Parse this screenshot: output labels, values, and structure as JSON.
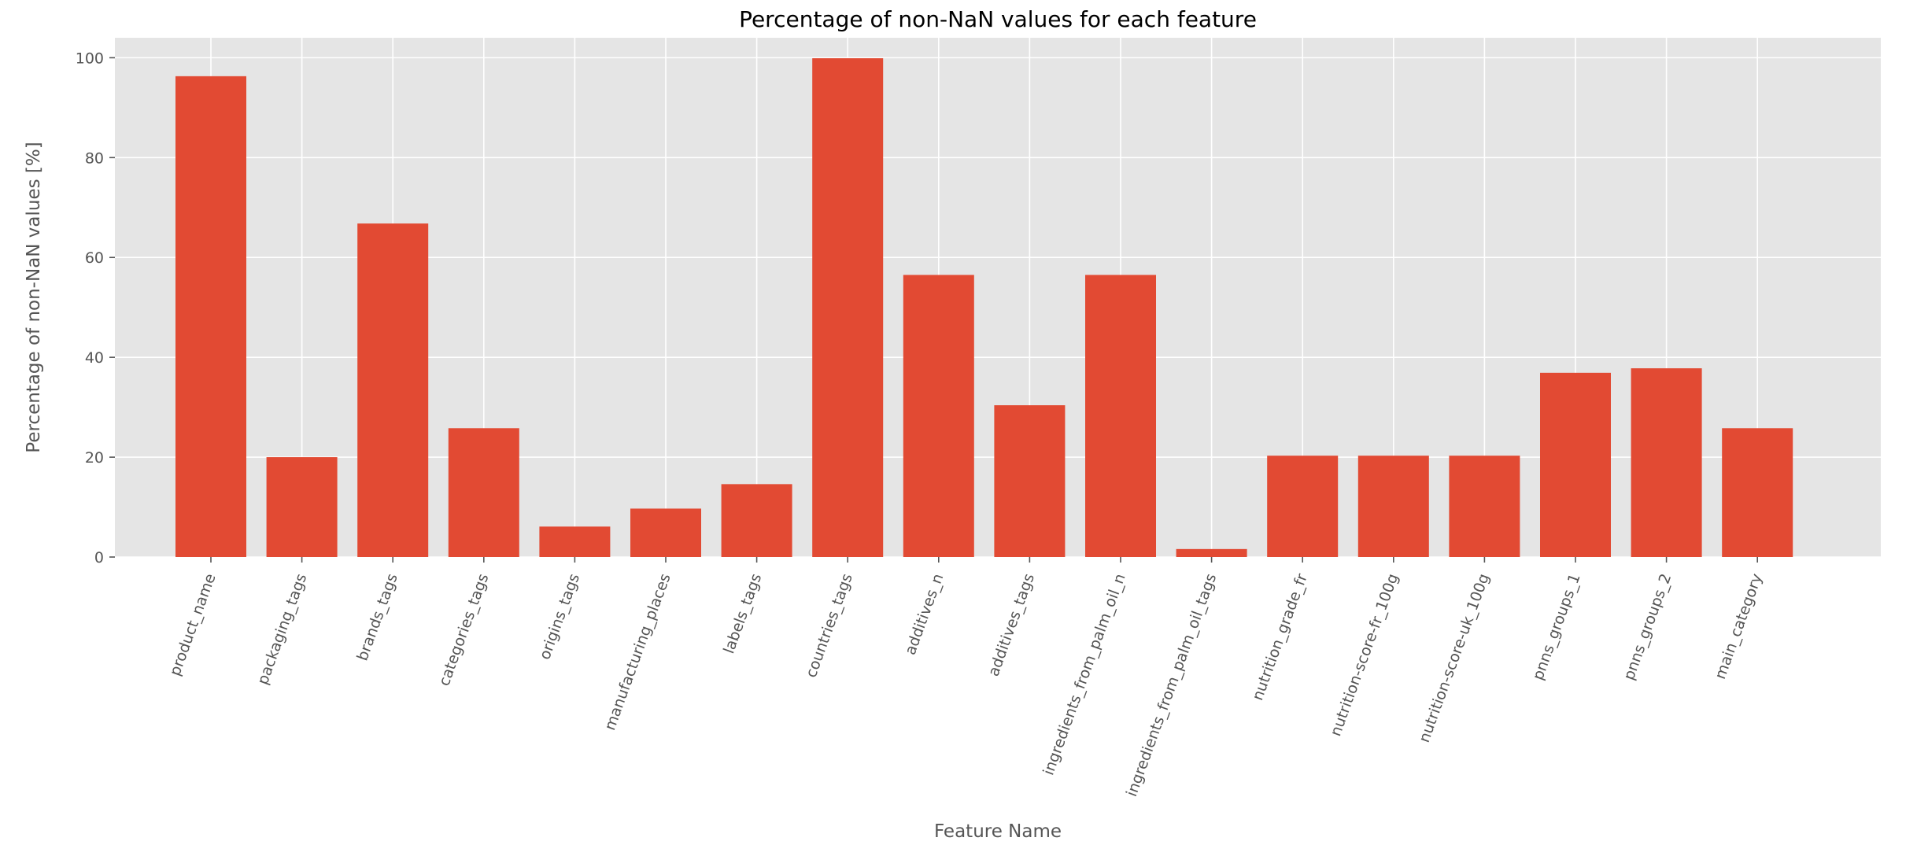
{
  "chart_data": {
    "type": "bar",
    "title": "Percentage of non-NaN values for each feature",
    "xlabel": "Feature Name",
    "ylabel": "Percentage of non-NaN values [%]",
    "ylim": [
      0,
      104
    ],
    "yticks": [
      0,
      20,
      40,
      60,
      80,
      100
    ],
    "grid": true,
    "categories": [
      "product_name",
      "packaging_tags",
      "brands_tags",
      "categories_tags",
      "origins_tags",
      "manufacturing_places",
      "labels_tags",
      "countries_tags",
      "additives_n",
      "additives_tags",
      "ingredients_from_palm_oil_n",
      "ingredients_from_palm_oil_tags",
      "nutrition_grade_fr",
      "nutrition-score-fr_100g",
      "nutrition-score-uk_100g",
      "pnns_groups_1",
      "pnns_groups_2",
      "main_category"
    ],
    "values": [
      96.3,
      20.0,
      66.8,
      25.8,
      6.1,
      9.7,
      14.6,
      99.9,
      56.5,
      30.4,
      56.5,
      1.6,
      20.3,
      20.3,
      20.3,
      36.9,
      37.8,
      25.8
    ],
    "colors": {
      "bar": "#E24A33",
      "background": "#E5E5E5",
      "grid": "#FFFFFF",
      "text": "#555555"
    }
  }
}
